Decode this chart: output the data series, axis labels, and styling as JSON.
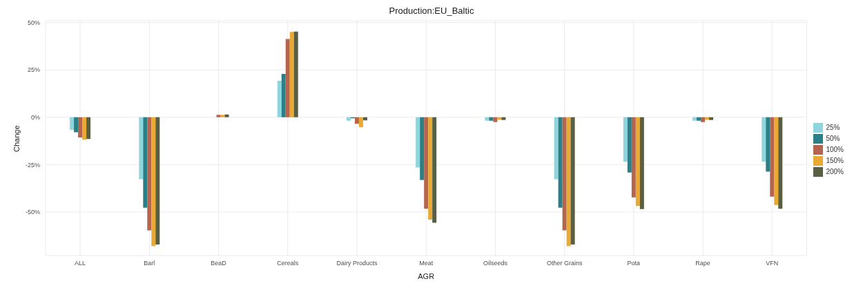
{
  "chart_data": {
    "type": "bar",
    "title": "Production:EU_Baltic",
    "xlabel": "AGR",
    "ylabel": "Change",
    "categories": [
      "ALL",
      "Barl",
      "BeaD",
      "Cereals",
      "Dairy Products",
      "Meat",
      "Oilseeds",
      "Other Grains",
      "Pota",
      "Rape",
      "VFN"
    ],
    "series": [
      {
        "name": "25%",
        "color": "#8fd5dd",
        "values": [
          -6.6,
          -32.7,
          0,
          19.3,
          -1.8,
          -26.5,
          -1.8,
          -32.7,
          -23.5,
          -1.8,
          -23.5
        ]
      },
      {
        "name": "50%",
        "color": "#2b7f87",
        "values": [
          -7.9,
          -47.7,
          0,
          22.9,
          -0.5,
          -33.1,
          -1.8,
          -47.7,
          -29.1,
          -1.8,
          -28.7
        ]
      },
      {
        "name": "100%",
        "color": "#b5654e",
        "values": [
          -10.6,
          -59.7,
          1.3,
          41.3,
          -3.4,
          -48.3,
          -2.5,
          -59.7,
          -42.3,
          -2.5,
          -41.9
        ]
      },
      {
        "name": "150%",
        "color": "#e8a935",
        "values": [
          -11.8,
          -68,
          1.3,
          45.1,
          -5.3,
          -54,
          -1.3,
          -68,
          -46.8,
          -1.3,
          -46.3
        ]
      },
      {
        "name": "200%",
        "color": "#585f42",
        "values": [
          -11.5,
          -67.2,
          1.5,
          45.3,
          -1.6,
          -55.7,
          -1.4,
          -67.2,
          -48.5,
          -1.4,
          -48.3
        ]
      }
    ],
    "ylim": [
      -73,
      51
    ],
    "yticks": [
      {
        "value": -50,
        "label": "-50%"
      },
      {
        "value": -25,
        "label": "-25%"
      },
      {
        "value": 0,
        "label": "0%"
      },
      {
        "value": 25,
        "label": "25%"
      },
      {
        "value": 50,
        "label": "50%"
      }
    ],
    "grid": true,
    "legend": "right"
  }
}
